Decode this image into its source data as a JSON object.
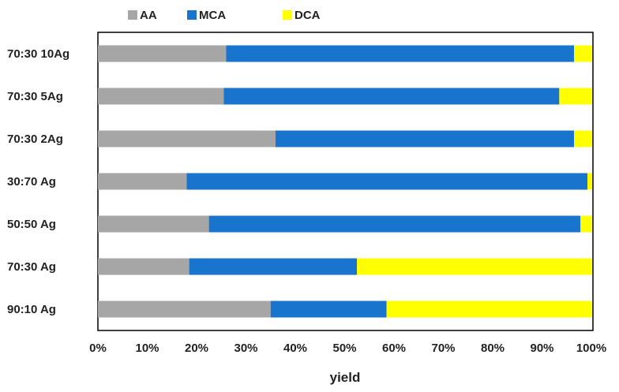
{
  "chart_data": {
    "type": "bar",
    "orientation": "horizontal",
    "stacked": "percent",
    "title": "",
    "xlabel": "yield",
    "ylabel": "",
    "xlim": [
      0,
      100
    ],
    "x_ticks": [
      "0%",
      "10%",
      "20%",
      "30%",
      "40%",
      "50%",
      "60%",
      "70%",
      "80%",
      "90%",
      "100%"
    ],
    "categories": [
      "70:30 10Ag",
      "70:30 5Ag",
      "70:30 2Ag",
      "30:70 Ag",
      "50:50 Ag",
      "70:30 Ag",
      "90:10 Ag"
    ],
    "series": [
      {
        "name": "AA",
        "color": "#A6A6A6",
        "values": [
          26,
          25.5,
          36,
          18,
          22.5,
          18.5,
          35
        ]
      },
      {
        "name": "MCA",
        "color": "#1874CD",
        "values": [
          70.5,
          68,
          60.5,
          81.2,
          75.3,
          34,
          23.5
        ]
      },
      {
        "name": "DCA",
        "color": "#FFFF00",
        "values": [
          3.5,
          6.5,
          3.5,
          0.8,
          2.2,
          47.5,
          41.5
        ]
      }
    ],
    "grid": false,
    "legend_position": "top"
  }
}
